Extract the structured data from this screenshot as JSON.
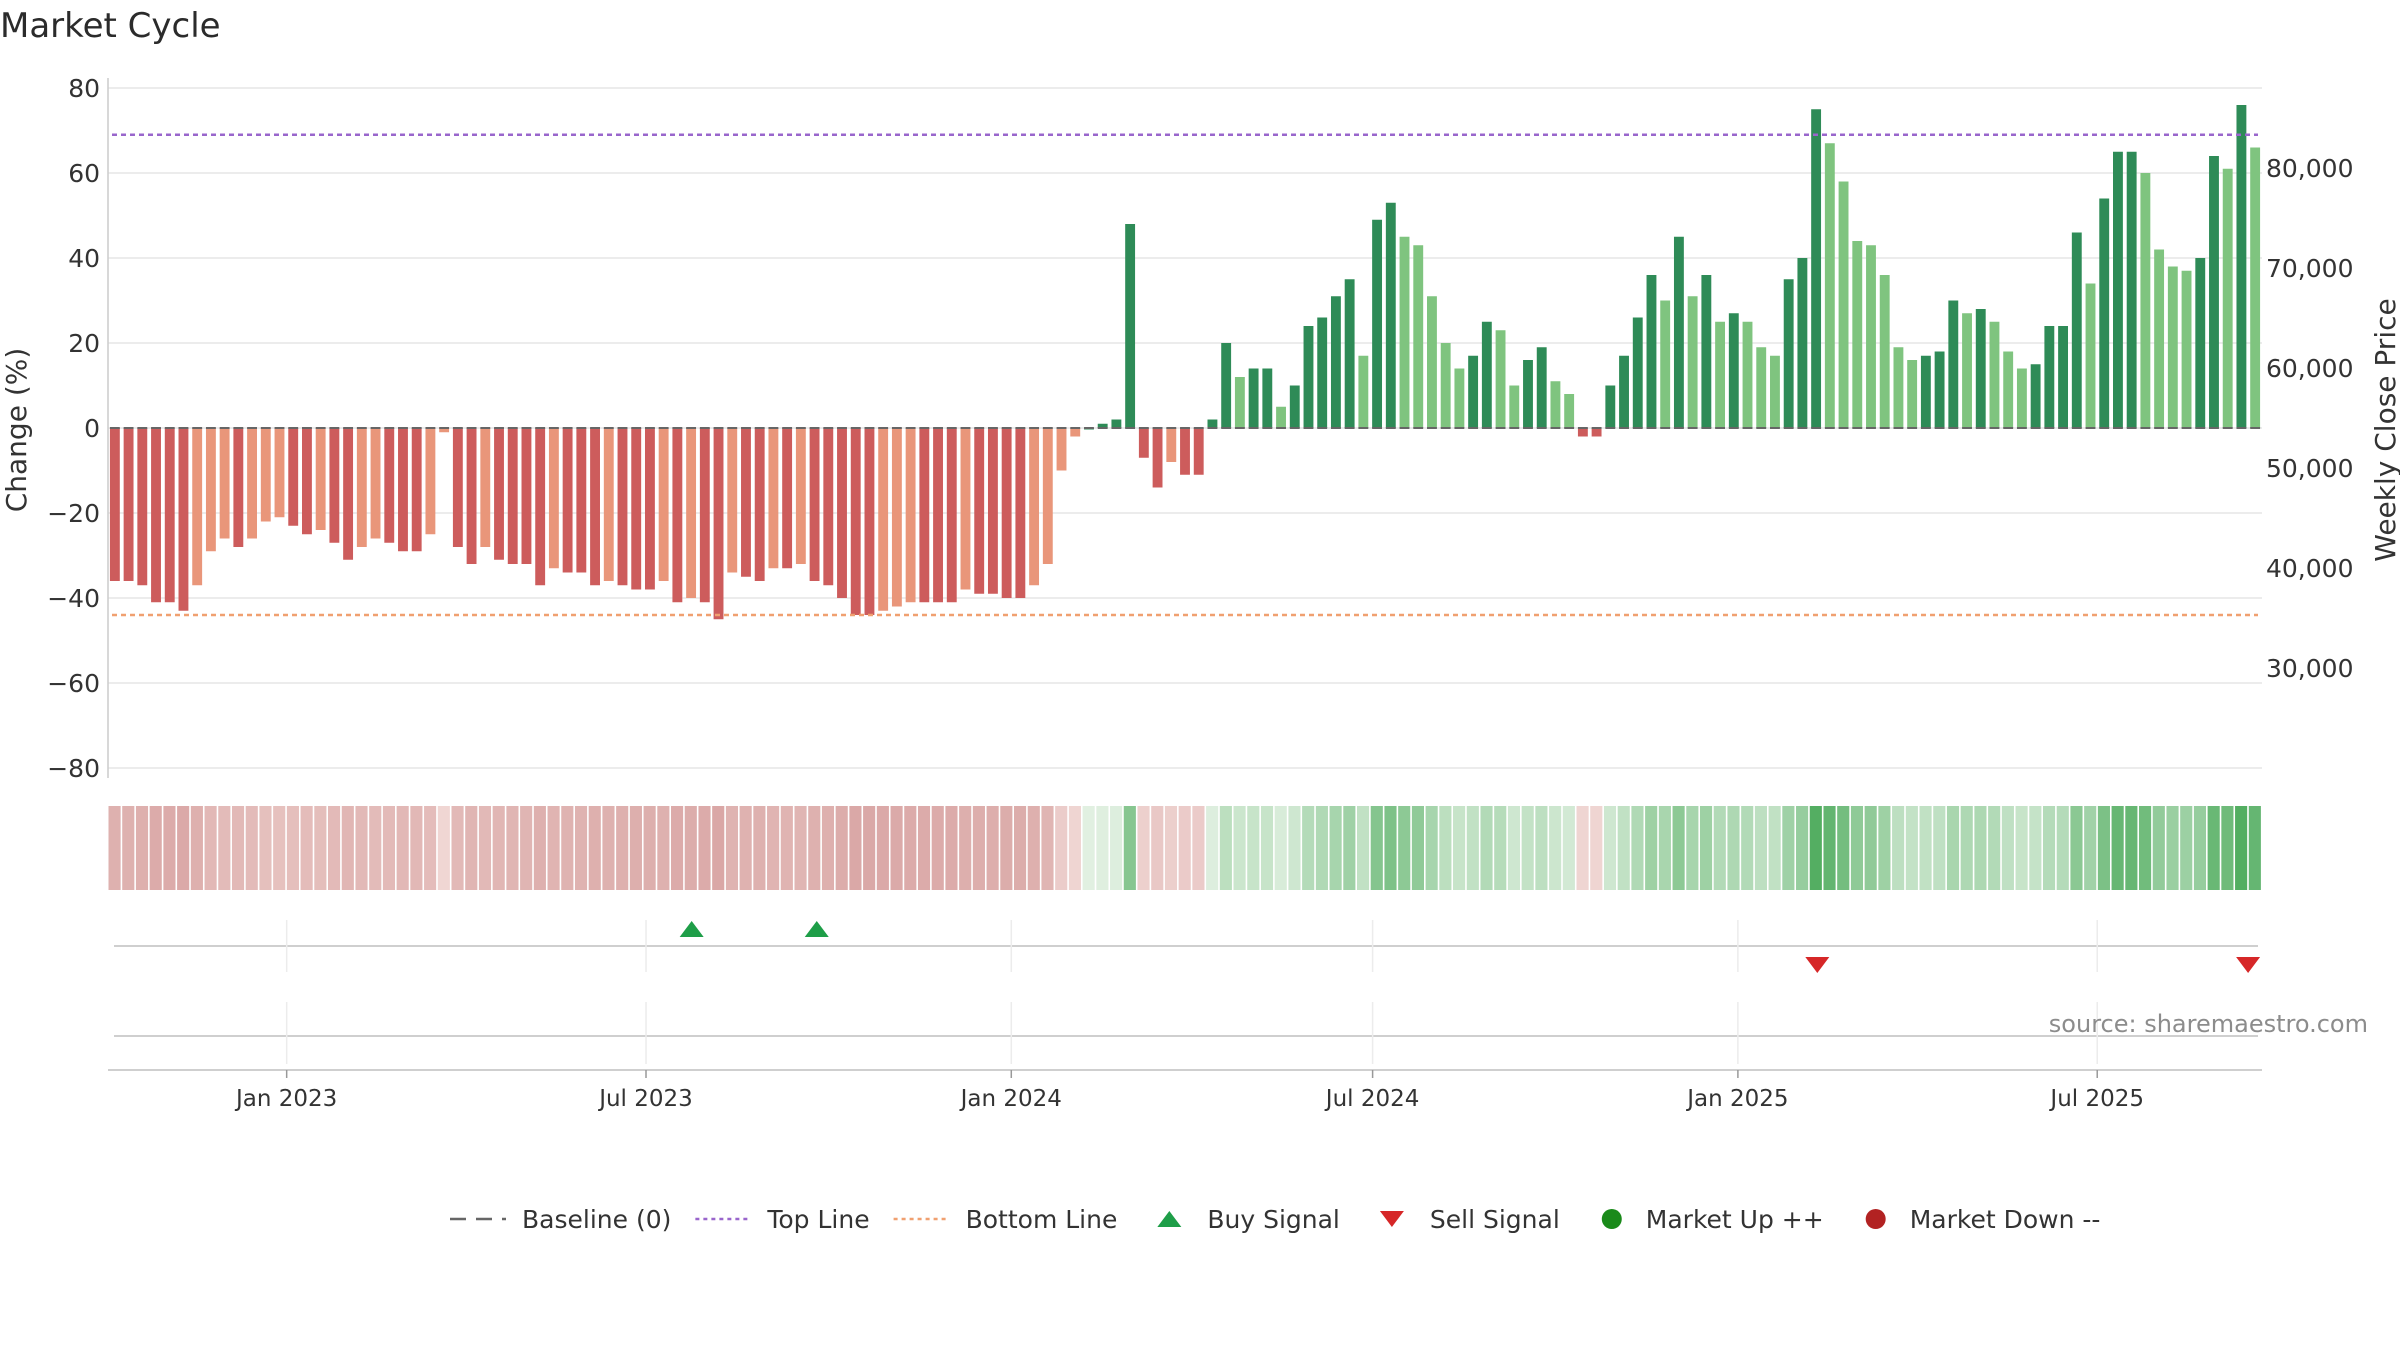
{
  "chart_data": {
    "type": "bar",
    "title": "Market Cycle",
    "ylabel": "Change (%)",
    "ylabel_right": "Weekly Close Price",
    "ylim": [
      -80,
      80
    ],
    "yticks": [
      "80",
      "60",
      "40",
      "20",
      "0",
      "−20",
      "−40",
      "−60",
      "−80"
    ],
    "ytick_values": [
      80,
      60,
      40,
      20,
      0,
      -20,
      -40,
      -60,
      -80
    ],
    "yticks_right": [
      "80,000",
      "70,000",
      "60,000",
      "50,000",
      "40,000",
      "30,000"
    ],
    "yticks_right_values": [
      80000,
      70000,
      60000,
      50000,
      40000,
      30000
    ],
    "right_ylim": [
      20000,
      88000
    ],
    "x_start": "2022-10-03",
    "x_end": "2025-09-22",
    "xticks": [
      {
        "label": "Jan 2023",
        "date": "2023-01-01"
      },
      {
        "label": "Jul 2023",
        "date": "2023-07-01"
      },
      {
        "label": "Jan 2024",
        "date": "2024-01-01"
      },
      {
        "label": "Jul 2024",
        "date": "2024-07-01"
      },
      {
        "label": "Jan 2025",
        "date": "2025-01-01"
      },
      {
        "label": "Jul 2025",
        "date": "2025-07-01"
      }
    ],
    "top_line": 69,
    "bottom_line": -44,
    "baseline": 0,
    "values": [
      -36,
      -36,
      -37,
      -41,
      -41,
      -43,
      -37,
      -29,
      -26,
      -28,
      -26,
      -22,
      -21,
      -23,
      -25,
      -24,
      -27,
      -31,
      -28,
      -26,
      -27,
      -29,
      -29,
      -25,
      -1,
      -28,
      -32,
      -28,
      -31,
      -32,
      -32,
      -37,
      -33,
      -34,
      -34,
      -37,
      -36,
      -37,
      -38,
      -38,
      -36,
      -41,
      -40,
      -41,
      -45,
      -34,
      -35,
      -36,
      -33,
      -33,
      -32,
      -36,
      -37,
      -40,
      -44,
      -44,
      -43,
      -42,
      -41,
      -41,
      -41,
      -41,
      -38,
      -39,
      -39,
      -40,
      -40,
      -37,
      -32,
      -10,
      -2,
      0,
      1,
      2,
      48,
      -7,
      -14,
      -8,
      -11,
      -11,
      2,
      20,
      12,
      14,
      14,
      5,
      10,
      24,
      26,
      31,
      35,
      17,
      49,
      53,
      45,
      43,
      31,
      20,
      14,
      17,
      25,
      23,
      10,
      16,
      19,
      11,
      8,
      -2,
      -2,
      10,
      17,
      26,
      36,
      30,
      45,
      31,
      36,
      25,
      27,
      25,
      19,
      17,
      35,
      40,
      75,
      67,
      58,
      44,
      43,
      36,
      19,
      16,
      17,
      18,
      30,
      27,
      28,
      25,
      18,
      14,
      15,
      24,
      24,
      46,
      34,
      54,
      65,
      65,
      60,
      42,
      38,
      37,
      40,
      64,
      61,
      76,
      66
    ],
    "buy_signals": [
      "2023-07-24",
      "2023-09-25"
    ],
    "sell_signals": [
      "2025-02-10",
      "2025-09-15"
    ],
    "legend": [
      {
        "label": "Baseline (0)",
        "symbol": "dash",
        "color": "#666666"
      },
      {
        "label": "Top Line",
        "symbol": "dotted",
        "color": "#9966cc"
      },
      {
        "label": "Bottom Line",
        "symbol": "dotted",
        "color": "#f0a070"
      },
      {
        "label": "Buy Signal",
        "symbol": "triangle-up",
        "color": "#1e9e48"
      },
      {
        "label": "Sell Signal",
        "symbol": "triangle-down",
        "color": "#d62728"
      },
      {
        "label": "Market Up ++",
        "symbol": "circle",
        "color": "#1a8a1a"
      },
      {
        "label": "Market Down --",
        "symbol": "circle",
        "color": "#b22222"
      }
    ],
    "colors": {
      "neg_dark": "#cd5c5c",
      "neg_light": "#e9967a",
      "pos_dark": "#2e8b57",
      "pos_light": "#7fc47f",
      "grid": "#e6e6e6"
    }
  },
  "source": "source: sharemaestro.com"
}
